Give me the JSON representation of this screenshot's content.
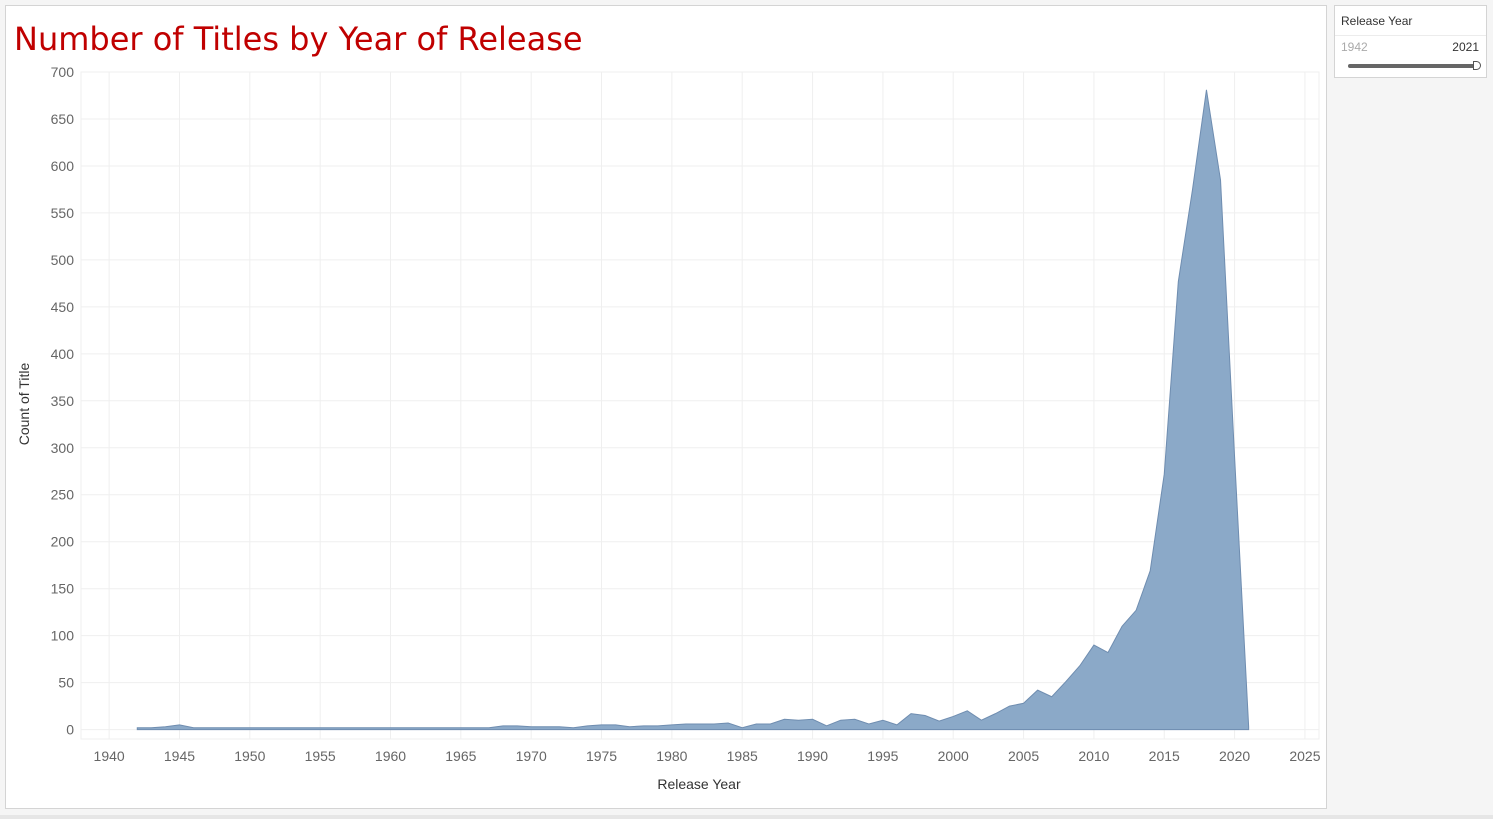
{
  "title": "Number of Titles by Year of Release",
  "colors": {
    "title": "#c00000",
    "area_fill": "#8ba9c8",
    "area_stroke": "#6f8db0",
    "grid": "#efefef",
    "tick_text": "#666666"
  },
  "filter": {
    "label": "Release Year",
    "min": "1942",
    "max": "2021",
    "icon": "range-slider-icon"
  },
  "chart_data": {
    "type": "area",
    "title": "Number of Titles by Year of Release",
    "xlabel": "Release Year",
    "ylabel": "Count of Title",
    "xlim": [
      1938,
      2026
    ],
    "ylim": [
      -10,
      700
    ],
    "grid": true,
    "legend": "none",
    "x_ticks": [
      "1940",
      "1945",
      "1950",
      "1955",
      "1960",
      "1965",
      "1970",
      "1975",
      "1980",
      "1985",
      "1990",
      "1995",
      "2000",
      "2005",
      "2010",
      "2015",
      "2020",
      "2025"
    ],
    "y_ticks": [
      "0",
      "50",
      "100",
      "150",
      "200",
      "250",
      "300",
      "350",
      "400",
      "450",
      "500",
      "550",
      "600",
      "650",
      "700"
    ],
    "series": [
      {
        "x": [
          1942,
          1943,
          1944,
          1945,
          1946,
          1947,
          1948,
          1949,
          1950,
          1951,
          1952,
          1953,
          1954,
          1955,
          1956,
          1957,
          1958,
          1959,
          1960,
          1961,
          1962,
          1963,
          1964,
          1965,
          1966,
          1967,
          1968,
          1969,
          1970,
          1971,
          1972,
          1973,
          1974,
          1975,
          1976,
          1977,
          1978,
          1979,
          1980,
          1981,
          1982,
          1983,
          1984,
          1985,
          1986,
          1987,
          1988,
          1989,
          1990,
          1991,
          1992,
          1993,
          1994,
          1995,
          1996,
          1997,
          1998,
          1999,
          2000,
          2001,
          2002,
          2003,
          2004,
          2005,
          2006,
          2007,
          2008,
          2009,
          2010,
          2011,
          2012,
          2013,
          2014,
          2015,
          2016,
          2017,
          2018,
          2019,
          2020,
          2021
        ],
        "y": [
          2,
          2,
          3,
          5,
          2,
          2,
          2,
          2,
          2,
          2,
          2,
          2,
          2,
          2,
          2,
          2,
          2,
          2,
          2,
          2,
          2,
          2,
          2,
          2,
          2,
          2,
          4,
          4,
          3,
          3,
          3,
          2,
          4,
          5,
          5,
          3,
          4,
          4,
          5,
          6,
          6,
          6,
          7,
          2,
          6,
          6,
          11,
          10,
          11,
          4,
          10,
          11,
          6,
          10,
          5,
          17,
          15,
          9,
          14,
          20,
          10,
          17,
          25,
          28,
          42,
          35,
          51,
          68,
          90,
          82,
          110,
          127,
          169,
          272,
          477,
          574,
          681,
          585,
          290,
          3
        ]
      }
    ]
  }
}
